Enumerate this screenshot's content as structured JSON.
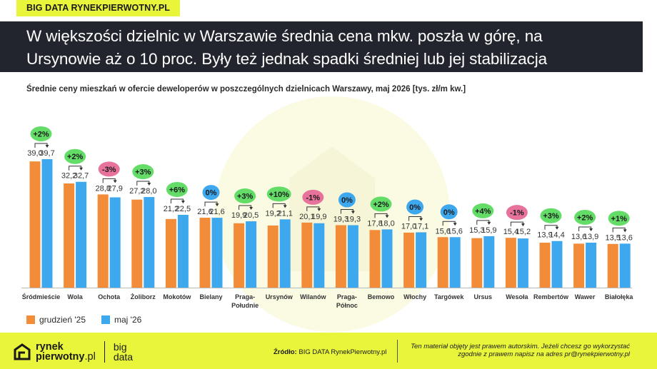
{
  "header": {
    "brand_tag": "BIG DATA RYNEKPIERWOTNY.PL",
    "headline_line1": "W większości dzielnic w Warszawie średnia cena mkw. poszła w górę, na",
    "headline_line2": "Ursynowie aż o 10 proc. Były też jednak spadki średniej lub jej stabilizacja"
  },
  "chart_data": {
    "type": "bar",
    "title": "Średnie ceny mieszkań w ofercie deweloperów w poszczególnych dzielnicach Warszawy, maj 2026 [tys. zł/m kw.]",
    "categories": [
      "Śródmieście",
      "Wola",
      "Ochota",
      "Żoliborz",
      "Mokotów",
      "Bielany",
      "Praga-\nPołudnie",
      "Ursynów",
      "Wilanów",
      "Praga-\nPółnoc",
      "Bemowo",
      "Włochy",
      "Targówek",
      "Ursus",
      "Wesoła",
      "Rembertów",
      "Wawer",
      "Białołęka"
    ],
    "series": [
      {
        "name": "grudzień '25",
        "color": "#f28c38",
        "values": [
          39.0,
          32.2,
          28.8,
          27.2,
          21.2,
          21.6,
          19.9,
          19.2,
          20.1,
          19.3,
          17.8,
          17.0,
          15.6,
          15.3,
          15.4,
          13.9,
          13.6,
          13.5
        ]
      },
      {
        "name": "maj '26",
        "color": "#3ea8ef",
        "values": [
          39.7,
          32.7,
          27.9,
          28.0,
          22.5,
          21.6,
          20.5,
          21.1,
          19.9,
          19.3,
          18.0,
          17.1,
          15.6,
          15.9,
          15.2,
          14.4,
          13.9,
          13.6
        ]
      }
    ],
    "value_labels": {
      "dec": [
        "39,0",
        "32,2",
        "28,8",
        "27,2",
        "21,2",
        "21,6",
        "19,9",
        "19,2",
        "20,1",
        "19,3",
        "17,8",
        "17,0",
        "15,6",
        "15,3",
        "15,4",
        "13,9",
        "13,6",
        "13,5"
      ],
      "may": [
        "39,7",
        "32,7",
        "27,9",
        "28,0",
        "22,5",
        "21,6",
        "20,5",
        "21,1",
        "19,9",
        "19,3",
        "18,0",
        "17,1",
        "15,6",
        "15,9",
        "15,2",
        "14,4",
        "13,9",
        "13,6"
      ]
    },
    "changes": [
      "+2%",
      "+2%",
      "-3%",
      "+3%",
      "+6%",
      "0%",
      "+3%",
      "+10%",
      "-1%",
      "0%",
      "+2%",
      "0%",
      "0%",
      "+4%",
      "-1%",
      "+3%",
      "+2%",
      "+1%"
    ],
    "change_colors": {
      "up": "#63dd68",
      "down": "#e7729b",
      "zero": "#3ea8ef"
    },
    "ylim": [
      0,
      45
    ],
    "grid": false,
    "legend_position": "bottom-left"
  },
  "footer": {
    "logo_line1": "rynek",
    "logo_line2_bold": "pierwotny",
    "logo_line2_thin": ".pl",
    "logo2_line1": "big",
    "logo2_line2": "data",
    "source_label": "Źródło:",
    "source_text": "BIG DATA RynekPierwotny.pl",
    "copyright_line1": "Ten materiał objęty jest prawem autorskim. Jeżeli chcesz go wykorzystać",
    "copyright_line2": "zgodnie z prawem napisz na adres pr@rynekpierwotny.pl"
  }
}
